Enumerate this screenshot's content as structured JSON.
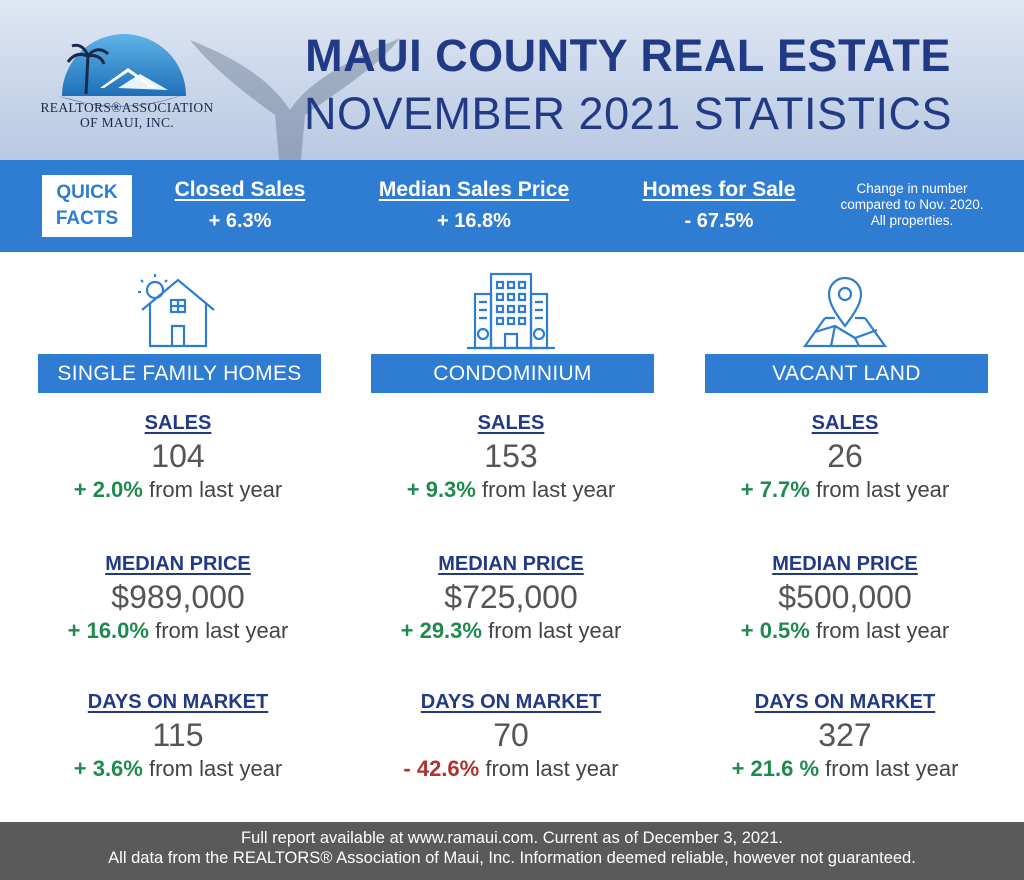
{
  "header": {
    "logo_text_1": "REALTORS®ASSOCIATION",
    "logo_text_2": "OF MAUI, INC.",
    "title_line_1": "MAUI COUNTY REAL ESTATE",
    "title_line_2": "NOVEMBER 2021 STATISTICS"
  },
  "quick_facts": {
    "box_line_1": "QUICK",
    "box_line_2": "FACTS",
    "items": [
      {
        "title": "Closed Sales",
        "value": "+ 6.3%"
      },
      {
        "title": "Median Sales Price",
        "value": "+ 16.8%"
      },
      {
        "title": "Homes for Sale",
        "value": "- 67.5%"
      }
    ],
    "note": "Change in number compared to Nov. 2020. All properties."
  },
  "columns": [
    {
      "icon": "house-sun-icon",
      "banner": "SINGLE FAMILY HOMES",
      "sales": {
        "label": "SALES",
        "value": "104",
        "change": "+ 2.0%",
        "suffix": "from last year"
      },
      "median": {
        "label": "MEDIAN PRICE",
        "value": "$989,000",
        "change": "+ 16.0%",
        "suffix": "from last year"
      },
      "dom": {
        "label": "DAYS ON MARKET",
        "value": "115",
        "change": "+ 3.6%",
        "suffix": "from last year"
      }
    },
    {
      "icon": "condo-building-icon",
      "banner": "CONDOMINIUM",
      "sales": {
        "label": "SALES",
        "value": "153",
        "change": "+ 9.3%",
        "suffix": "from last year"
      },
      "median": {
        "label": "MEDIAN PRICE",
        "value": "$725,000",
        "change": "+ 29.3%",
        "suffix": "from last year"
      },
      "dom": {
        "label": "DAYS ON MARKET",
        "value": "70",
        "change": "- 42.6%",
        "suffix": "from last year"
      }
    },
    {
      "icon": "map-pin-icon",
      "banner": "VACANT LAND",
      "sales": {
        "label": "SALES",
        "value": "26",
        "change": "+ 7.7%",
        "suffix": "from last year"
      },
      "median": {
        "label": "MEDIAN PRICE",
        "value": "$500,000",
        "change": "+ 0.5%",
        "suffix": "from last year"
      },
      "dom": {
        "label": "DAYS ON MARKET",
        "value": "327",
        "change": "+ 21.6 %",
        "suffix": "from last year"
      }
    }
  ],
  "footer": {
    "line_1": "Full report available at www.ramaui.com. Current as of December 3, 2021.",
    "line_2": "All data from the REALTORS® Association of Maui, Inc. Information deemed reliable, however not guaranteed."
  },
  "colors": {
    "brand_blue": "#2f7cd3",
    "title_navy": "#223a85",
    "positive_green": "#1e8a4e",
    "negative_red": "#b03030",
    "footer_gray": "#5a5a5a"
  }
}
